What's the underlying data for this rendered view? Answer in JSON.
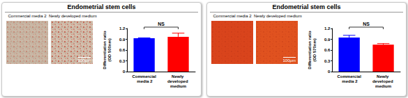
{
  "panels": [
    {
      "title": "Endometrial stem cells",
      "image_labels": [
        "Commercial media 2",
        "Newly developed medium"
      ],
      "scale_bar": "100μm"
    },
    {
      "title": "Endometrial stem cells",
      "image_labels": [
        "Commercial media 2",
        "Newly developed medium"
      ],
      "scale_bar": "100μm"
    }
  ],
  "chart_data": [
    {
      "type": "bar",
      "categories": [
        "Commercial media 2",
        "Newly developed medium"
      ],
      "values": [
        0.93,
        0.97
      ],
      "errors": [
        0.01,
        0.1
      ],
      "colors": [
        "#0000ff",
        "#ff0000"
      ],
      "ylabel": "Differentiation ratio (OD 500nm)",
      "ylim": [
        0,
        1.2
      ],
      "yticks": [
        0,
        0.3,
        0.6,
        0.9,
        1.2
      ],
      "annotation": "NS",
      "grid": false
    },
    {
      "type": "bar",
      "categories": [
        "Commercial media 2",
        "Newly developed medium"
      ],
      "values": [
        0.95,
        0.75
      ],
      "errors": [
        0.06,
        0.03
      ],
      "colors": [
        "#0000ff",
        "#ff0000"
      ],
      "ylabel": "Differentiation ratio (OD 570nm)",
      "ylim": [
        0,
        1.2
      ],
      "yticks": [
        0,
        0.3,
        0.6,
        0.9,
        1.2
      ],
      "annotation": "NS",
      "grid": false
    }
  ]
}
